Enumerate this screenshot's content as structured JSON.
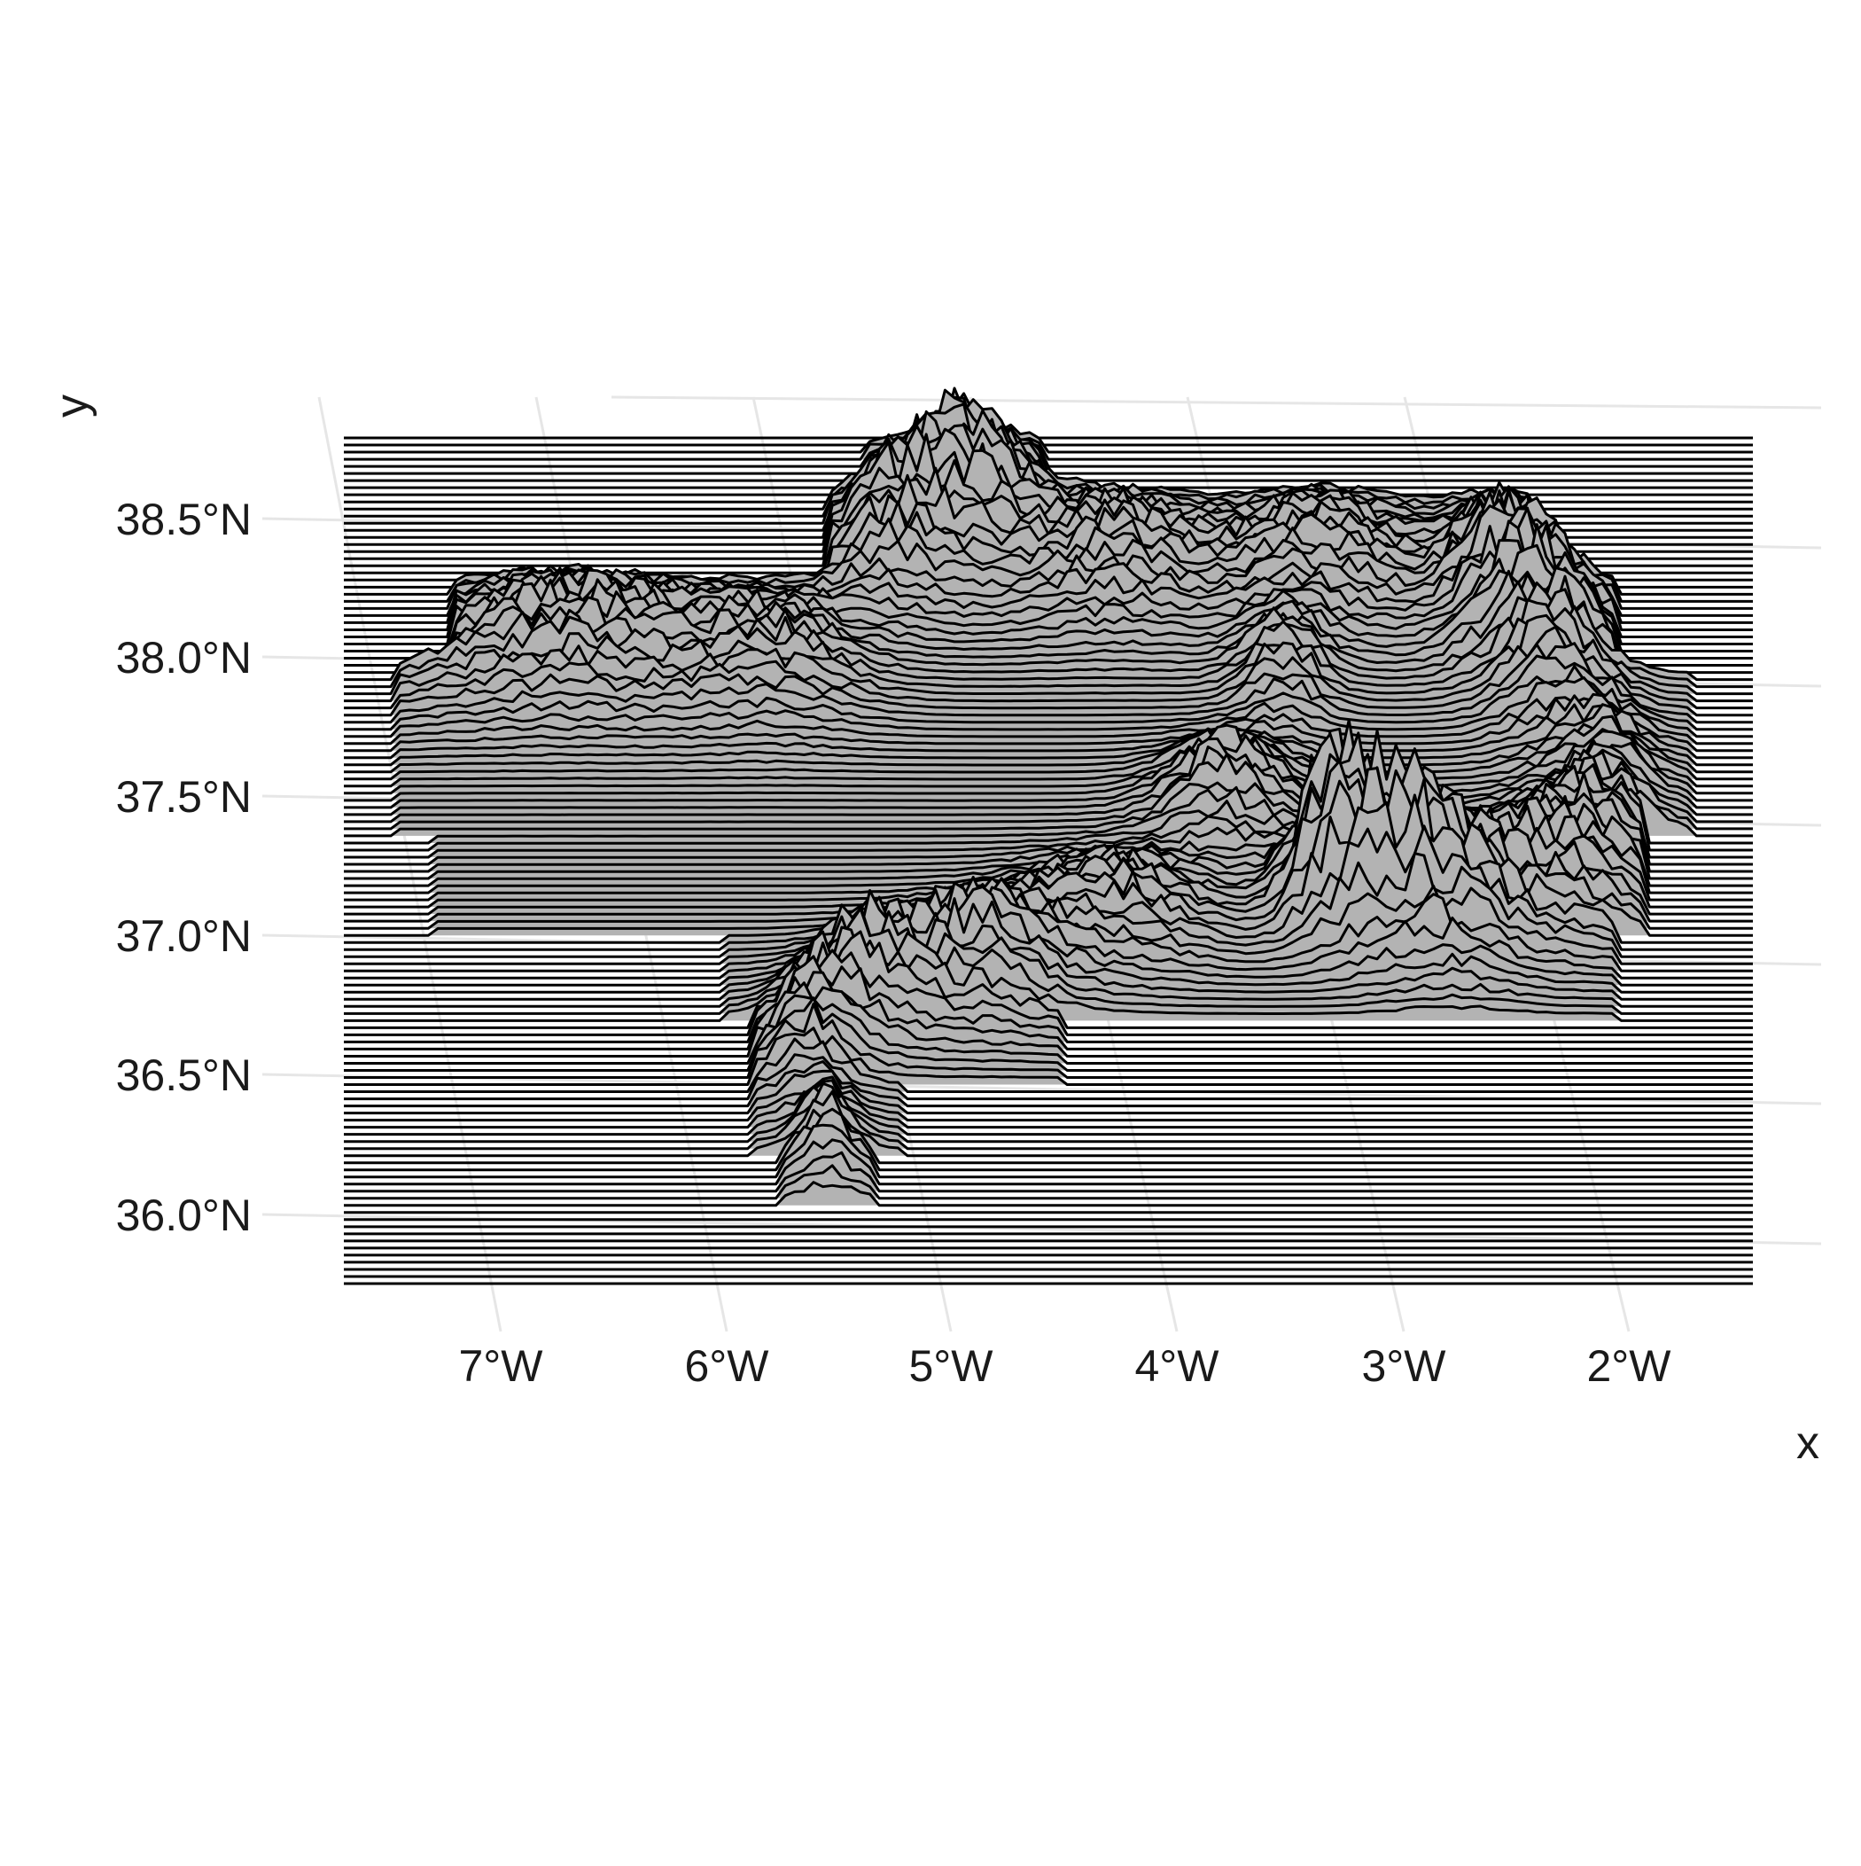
{
  "chart_data": {
    "type": "ridgeline",
    "xlabel": "x",
    "ylabel": "y",
    "x_ticks": [
      "7°W",
      "6°W",
      "5°W",
      "4°W",
      "3°W",
      "2°W"
    ],
    "y_ticks": [
      "38.5°N",
      "38.0°N",
      "37.5°N",
      "37.0°N",
      "36.5°N",
      "36.0°N"
    ],
    "x_tick_values": [
      -7,
      -6,
      -5,
      -4,
      -3,
      -2
    ],
    "y_tick_values": [
      38.5,
      38.0,
      37.5,
      37.0,
      36.5,
      36.0
    ],
    "xlim": [
      -7.68,
      -1.48
    ],
    "ylim": [
      35.76,
      38.8
    ],
    "row_count": 120,
    "grid": true,
    "legend": "none",
    "colors": {
      "fill": "#b3b3b3",
      "line": "#000000",
      "grid": "#e6e6e6",
      "background": "#ffffff"
    }
  }
}
